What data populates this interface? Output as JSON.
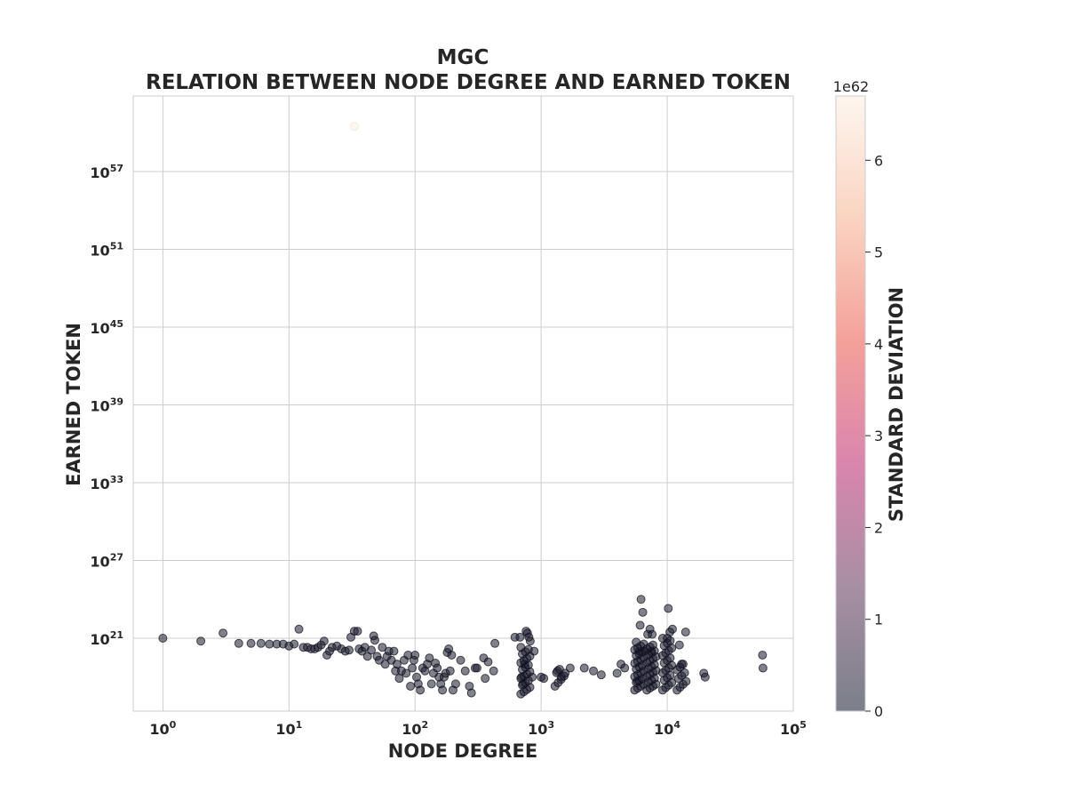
{
  "chart_data": {
    "type": "scatter",
    "title": "MGC",
    "subtitle": "RELATION BETWEEN NODE DEGREE AND EARNED TOKEN",
    "xlabel": "NODE DEGREE",
    "ylabel": "EARNED TOKEN",
    "x_scale": "log",
    "y_scale": "log",
    "x_ticks": [
      "10^0",
      "10^1",
      "10^2",
      "10^3",
      "10^4",
      "10^5"
    ],
    "y_ticks": [
      "10^21",
      "10^27",
      "10^33",
      "10^39",
      "10^45",
      "10^51",
      "10^57"
    ],
    "grid": true,
    "colorbar": {
      "label": "STANDARD DEVIATION",
      "multiplier": "1e62",
      "ticks": [
        "0",
        "1",
        "2",
        "3",
        "4",
        "5",
        "6"
      ],
      "range": [
        0,
        6.7
      ],
      "colormap": [
        "#7b7f8a",
        "#a78fa3",
        "#d985ad",
        "#f4a09a",
        "#fad3c0",
        "#fdf6f0"
      ]
    },
    "point_color": "#1a1a2e",
    "points": [
      {
        "x": 1,
        "y": 1e+21
      },
      {
        "x": 2,
        "y": 6e+20
      },
      {
        "x": 3,
        "y": 2.5e+21
      },
      {
        "x": 4,
        "y": 4e+20
      },
      {
        "x": 5,
        "y": 4e+20
      },
      {
        "x": 6,
        "y": 4e+20
      },
      {
        "x": 7,
        "y": 3.5e+20
      },
      {
        "x": 8,
        "y": 3.5e+20
      },
      {
        "x": 9,
        "y": 3.5e+20
      },
      {
        "x": 10,
        "y": 2.5e+20
      },
      {
        "x": 11,
        "y": 3.5e+20
      },
      {
        "x": 12,
        "y": 5e+21
      },
      {
        "x": 13,
        "y": 2e+20
      },
      {
        "x": 14,
        "y": 2e+20
      },
      {
        "x": 15,
        "y": 1.5e+20
      },
      {
        "x": 16,
        "y": 1.5e+20
      },
      {
        "x": 17,
        "y": 2e+20
      },
      {
        "x": 18,
        "y": 3e+20
      },
      {
        "x": 19,
        "y": 6e+20
      },
      {
        "x": 20,
        "y": 5e+19
      },
      {
        "x": 21,
        "y": 1e+20
      },
      {
        "x": 22,
        "y": 2e+20
      },
      {
        "x": 24,
        "y": 2.5e+20
      },
      {
        "x": 26,
        "y": 1.5e+20
      },
      {
        "x": 28,
        "y": 1e+20
      },
      {
        "x": 30,
        "y": 1.2e+20
      },
      {
        "x": 31,
        "y": 1.2e+21
      },
      {
        "x": 33,
        "y": 3.5e+21
      },
      {
        "x": 35,
        "y": 3.5e+21
      },
      {
        "x": 36,
        "y": 1.5e+20
      },
      {
        "x": 38,
        "y": 1e+20
      },
      {
        "x": 40,
        "y": 2e+20
      },
      {
        "x": 42,
        "y": 4e+19
      },
      {
        "x": 45,
        "y": 1.2e+20
      },
      {
        "x": 47,
        "y": 1.5e+21
      },
      {
        "x": 48,
        "y": 7e+20
      },
      {
        "x": 50,
        "y": 4e+19
      },
      {
        "x": 52,
        "y": 2e+19
      },
      {
        "x": 55,
        "y": 2e+20
      },
      {
        "x": 58,
        "y": 1e+19
      },
      {
        "x": 60,
        "y": 4e+19
      },
      {
        "x": 62,
        "y": 1e+20
      },
      {
        "x": 65,
        "y": 2e+19
      },
      {
        "x": 68,
        "y": 1e+20
      },
      {
        "x": 70,
        "y": 3e+18
      },
      {
        "x": 72,
        "y": 1e+19
      },
      {
        "x": 75,
        "y": 8e+17
      },
      {
        "x": 78,
        "y": 3e+18
      },
      {
        "x": 82,
        "y": 2e+19
      },
      {
        "x": 85,
        "y": 2e+18
      },
      {
        "x": 88,
        "y": 5e+19
      },
      {
        "x": 92,
        "y": 2e+17
      },
      {
        "x": 95,
        "y": 5e+18
      },
      {
        "x": 98,
        "y": 2e+19
      },
      {
        "x": 100,
        "y": 5e+19
      },
      {
        "x": 103,
        "y": 1e+18
      },
      {
        "x": 106,
        "y": 3e+17
      },
      {
        "x": 110,
        "y": 1e+17
      },
      {
        "x": 115,
        "y": 5e+18
      },
      {
        "x": 120,
        "y": 3e+18
      },
      {
        "x": 125,
        "y": 1e+19
      },
      {
        "x": 130,
        "y": 3e+19
      },
      {
        "x": 135,
        "y": 3e+17
      },
      {
        "x": 140,
        "y": 2e+18
      },
      {
        "x": 145,
        "y": 1.2e+19
      },
      {
        "x": 150,
        "y": 5e+18
      },
      {
        "x": 155,
        "y": 1e+18
      },
      {
        "x": 160,
        "y": 3e+17
      },
      {
        "x": 165,
        "y": 1e+17
      },
      {
        "x": 170,
        "y": 1e+18
      },
      {
        "x": 175,
        "y": 2e+18
      },
      {
        "x": 180,
        "y": 8e+19
      },
      {
        "x": 185,
        "y": 1.5e+20
      },
      {
        "x": 190,
        "y": 3e+18
      },
      {
        "x": 195,
        "y": 5e+19
      },
      {
        "x": 200,
        "y": 1e+17
      },
      {
        "x": 210,
        "y": 3e+17
      },
      {
        "x": 230,
        "y": 2e+19
      },
      {
        "x": 250,
        "y": 3e+18
      },
      {
        "x": 270,
        "y": 2e+17
      },
      {
        "x": 280,
        "y": 6e+16
      },
      {
        "x": 300,
        "y": 5e+18
      },
      {
        "x": 310,
        "y": 5e+18
      },
      {
        "x": 350,
        "y": 3e+19
      },
      {
        "x": 360,
        "y": 8e+17
      },
      {
        "x": 380,
        "y": 1.5e+19
      },
      {
        "x": 420,
        "y": 3e+18
      },
      {
        "x": 430,
        "y": 4e+20
      },
      {
        "x": 620,
        "y": 1.2e+21
      },
      {
        "x": 680,
        "y": 1.2e+21
      },
      {
        "x": 700,
        "y": 1e+18
      },
      {
        "x": 720,
        "y": 3e+17
      },
      {
        "x": 740,
        "y": 1e+19
      },
      {
        "x": 760,
        "y": 3.5e+21
      },
      {
        "x": 780,
        "y": 2.5e+21
      },
      {
        "x": 800,
        "y": 1.2e+21
      },
      {
        "x": 820,
        "y": 6e+20
      },
      {
        "x": 850,
        "y": 1e+18
      },
      {
        "x": 880,
        "y": 1e+20
      },
      {
        "x": 1000,
        "y": 1e+18
      },
      {
        "x": 1050,
        "y": 8e+17
      },
      {
        "x": 1350,
        "y": 3e+18
      },
      {
        "x": 1450,
        "y": 1e+18
      },
      {
        "x": 1550,
        "y": 2e+18
      },
      {
        "x": 1700,
        "y": 5e+18
      },
      {
        "x": 2200,
        "y": 5e+18
      },
      {
        "x": 2600,
        "y": 3e+18
      },
      {
        "x": 3000,
        "y": 1.5e+18
      },
      {
        "x": 4000,
        "y": 2e+18
      },
      {
        "x": 4300,
        "y": 1e+19
      },
      {
        "x": 4600,
        "y": 5e+18
      },
      {
        "x": 5800,
        "y": 5e+17
      },
      {
        "x": 6000,
        "y": 1e+20
      },
      {
        "x": 6100,
        "y": 1e+22
      },
      {
        "x": 6200,
        "y": 1e+24
      },
      {
        "x": 6400,
        "y": 1e+23
      },
      {
        "x": 6600,
        "y": 1e+20
      },
      {
        "x": 7000,
        "y": 2e+21
      },
      {
        "x": 7300,
        "y": 5e+21
      },
      {
        "x": 7500,
        "y": 1e+20
      },
      {
        "x": 7600,
        "y": 2e+21
      },
      {
        "x": 10000,
        "y": 1e+21
      },
      {
        "x": 10200,
        "y": 2e+23
      },
      {
        "x": 10500,
        "y": 3e+21
      },
      {
        "x": 11000,
        "y": 5e+21
      },
      {
        "x": 12500,
        "y": 3e+20
      },
      {
        "x": 13000,
        "y": 1e+19
      },
      {
        "x": 14000,
        "y": 3e+21
      },
      {
        "x": 19500,
        "y": 2e+18
      },
      {
        "x": 20000,
        "y": 1e+18
      },
      {
        "x": 57000,
        "y": 5e+19
      },
      {
        "x": 57500,
        "y": 5e+18
      }
    ],
    "vertical_clusters": [
      {
        "x": 750,
        "y_min": 5e+16,
        "y_max": 2e+20,
        "count": 22
      },
      {
        "x": 6000,
        "y_min": 1e+17,
        "y_max": 5e+20,
        "count": 26
      },
      {
        "x": 7500,
        "y_min": 1e+17,
        "y_max": 3e+20,
        "count": 24
      },
      {
        "x": 10000,
        "y_min": 1e+17,
        "y_max": 1e+21,
        "count": 22
      },
      {
        "x": 13000,
        "y_min": 1e+17,
        "y_max": 1e+19,
        "count": 10
      },
      {
        "x": 1400,
        "y_min": 2e+17,
        "y_max": 4e+18,
        "count": 6
      }
    ],
    "outliers": [
      {
        "x": 33,
        "y": 3e+60,
        "std_dev": 6.7
      }
    ]
  }
}
